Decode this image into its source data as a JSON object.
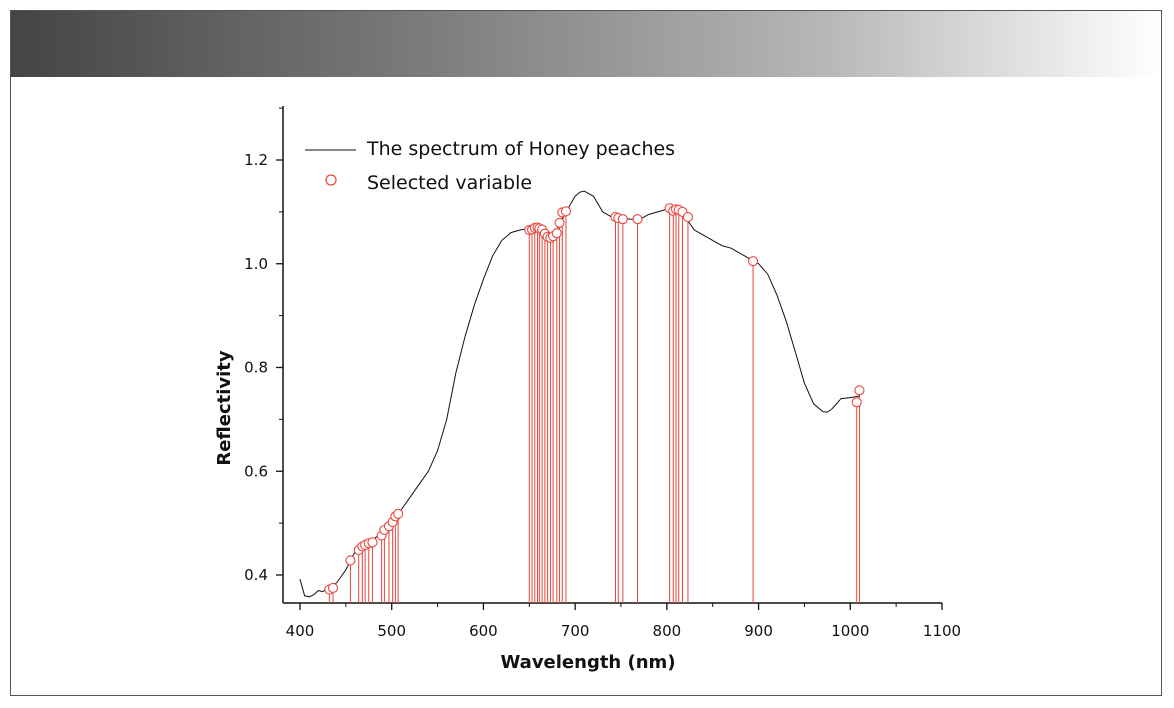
{
  "colors": {
    "spectrum_line": "#111111",
    "selected_marker": "#e8463b",
    "axis": "#111111"
  },
  "chart_data": {
    "type": "line",
    "title": "",
    "xlabel": "Wavelength (nm)",
    "ylabel": "Reflectivity",
    "xlim": [
      380,
      1100
    ],
    "ylim": [
      0.35,
      1.3
    ],
    "x_ticks": [
      400,
      500,
      600,
      700,
      800,
      900,
      1000,
      1100
    ],
    "y_ticks": [
      0.4,
      0.6,
      0.8,
      1.0,
      1.2
    ],
    "x_tick_labels": [
      "400",
      "500",
      "600",
      "700",
      "800",
      "900",
      "1000",
      "1100"
    ],
    "y_tick_labels": [
      "0.4",
      "0.6",
      "0.8",
      "1.0",
      "1.2"
    ],
    "legend": {
      "position": "top-left",
      "entries": [
        "The spectrum of Honey peaches",
        "Selected variable"
      ]
    },
    "series": [
      {
        "name": "The spectrum of Honey peaches",
        "style": "line",
        "x": [
          400,
          405,
          410,
          415,
          420,
          425,
          430,
          440,
          450,
          460,
          470,
          480,
          490,
          500,
          510,
          520,
          530,
          540,
          550,
          560,
          570,
          580,
          590,
          600,
          610,
          620,
          630,
          640,
          650,
          660,
          670,
          680,
          690,
          700,
          705,
          710,
          720,
          730,
          740,
          750,
          760,
          770,
          780,
          790,
          800,
          810,
          820,
          830,
          840,
          850,
          860,
          870,
          880,
          890,
          900,
          910,
          920,
          930,
          940,
          950,
          960,
          970,
          975,
          980,
          990,
          1000,
          1010
        ],
        "y": [
          0.392,
          0.36,
          0.358,
          0.362,
          0.37,
          0.368,
          0.375,
          0.385,
          0.41,
          0.445,
          0.46,
          0.468,
          0.485,
          0.5,
          0.525,
          0.55,
          0.575,
          0.6,
          0.64,
          0.7,
          0.79,
          0.86,
          0.92,
          0.97,
          1.015,
          1.045,
          1.06,
          1.065,
          1.068,
          1.065,
          1.055,
          1.065,
          1.1,
          1.13,
          1.138,
          1.14,
          1.13,
          1.1,
          1.09,
          1.088,
          1.086,
          1.085,
          1.095,
          1.1,
          1.105,
          1.1,
          1.09,
          1.065,
          1.055,
          1.045,
          1.035,
          1.03,
          1.02,
          1.01,
          1.0,
          0.98,
          0.94,
          0.89,
          0.83,
          0.77,
          0.73,
          0.715,
          0.714,
          0.72,
          0.74,
          0.742,
          0.745
        ]
      },
      {
        "name": "Selected variable",
        "style": "stem",
        "x": [
          432,
          436,
          455,
          464,
          468,
          471,
          475,
          479,
          489,
          492,
          497,
          501,
          504,
          507,
          650,
          653,
          656,
          659,
          661,
          664,
          667,
          670,
          673,
          676,
          680,
          683,
          686,
          690,
          744,
          747,
          752,
          768,
          803,
          807,
          810,
          813,
          817,
          823,
          894,
          1007,
          1010
        ],
        "y": [
          0.372,
          0.375,
          0.428,
          0.448,
          0.455,
          0.458,
          0.461,
          0.463,
          0.476,
          0.487,
          0.494,
          0.502,
          0.513,
          0.518,
          1.065,
          1.066,
          1.069,
          1.07,
          1.068,
          1.066,
          1.058,
          1.052,
          1.05,
          1.053,
          1.059,
          1.079,
          1.099,
          1.101,
          1.09,
          1.088,
          1.086,
          1.086,
          1.107,
          1.102,
          1.105,
          1.104,
          1.1,
          1.09,
          1.005,
          0.733,
          0.756
        ]
      }
    ]
  }
}
